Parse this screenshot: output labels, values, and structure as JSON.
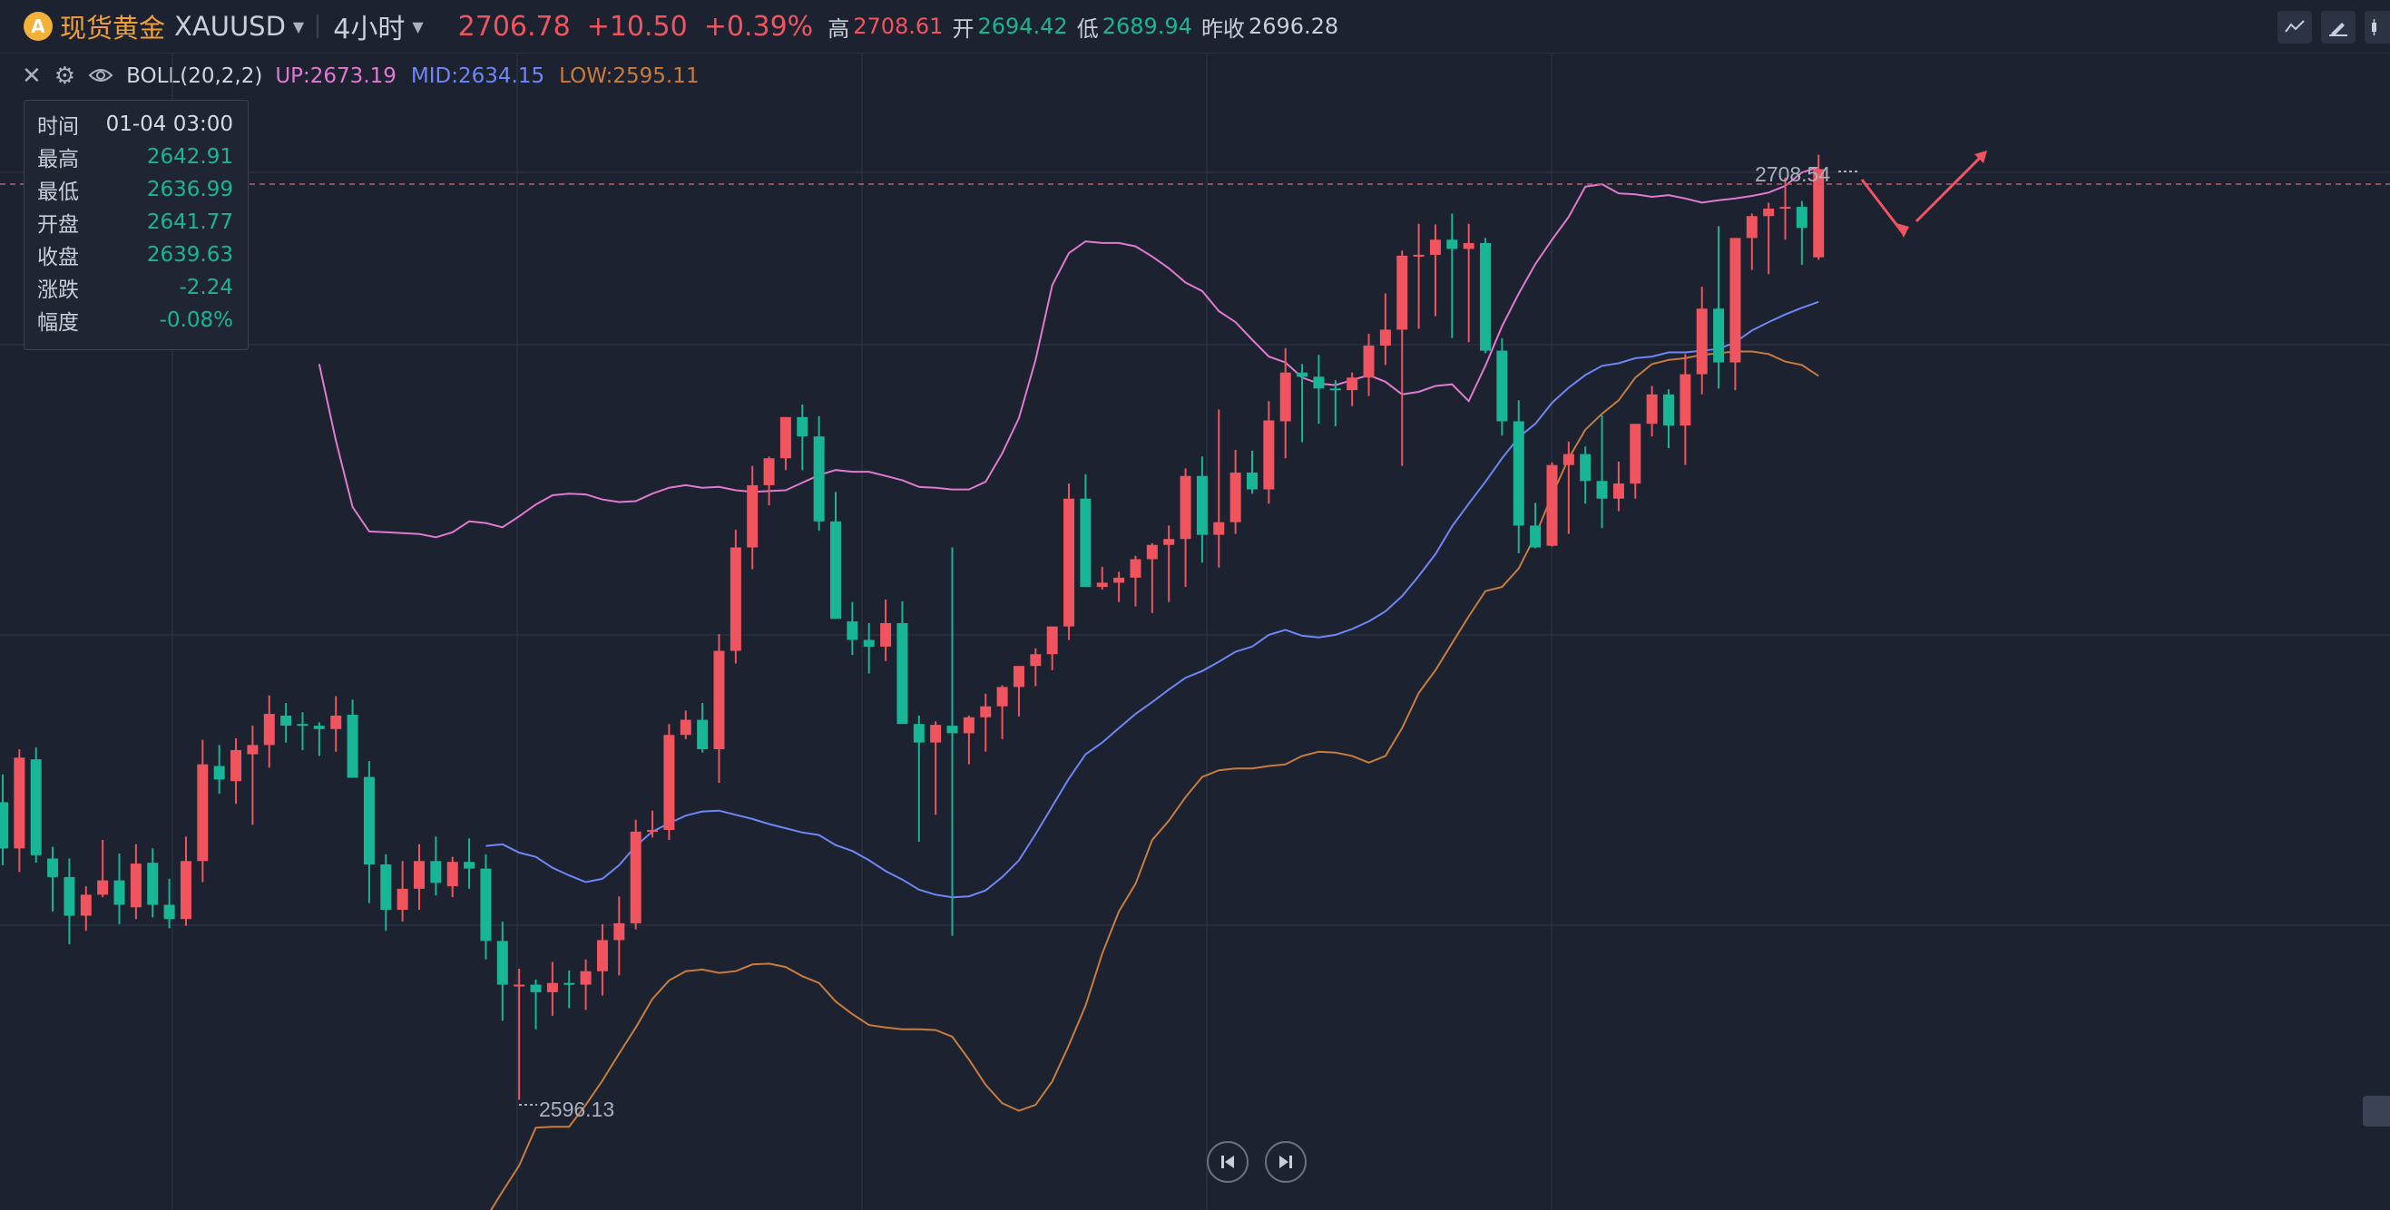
{
  "header": {
    "coin_glyph": "A",
    "name": "现货黄金",
    "code": "XAUUSD",
    "period": "4小时",
    "price": "2706.78",
    "change": "+10.50",
    "change_pct": "+0.39%",
    "high_label": "高",
    "high": "2708.61",
    "open_label": "开",
    "open": "2694.42",
    "low_label": "低",
    "low": "2689.94",
    "prev_label": "昨收",
    "prev": "2696.28",
    "tool_icons": [
      "indicator-icon",
      "draw-icon",
      "candle-type-icon"
    ]
  },
  "indicator": {
    "name": "BOLL(20,2,2)",
    "up": "UP:2673.19",
    "mid": "MID:2634.15",
    "low": "LOW:2595.11",
    "icons": [
      "close-icon",
      "settings-icon",
      "eye-icon"
    ]
  },
  "tooltip": {
    "time_label": "时间",
    "time": "01-04 03:00",
    "high_label": "最高",
    "high": "2642.91",
    "low_label": "最低",
    "low": "2636.99",
    "open_label": "开盘",
    "open": "2641.77",
    "close_label": "收盘",
    "close": "2639.63",
    "chg_label": "涨跌",
    "chg": "-2.24",
    "pct_label": "幅度",
    "pct": "-0.08%"
  },
  "colors": {
    "up": "#f0555f",
    "down": "#18b596",
    "boll_up": "#e07ad0",
    "boll_mid": "#6f86f5",
    "boll_low": "#c97c3d",
    "grid": "#283041",
    "background": "#1c2230"
  },
  "chart_data": {
    "type": "candlestick",
    "symbol": "XAUUSD",
    "interval": "4h",
    "ylim": [
      2583,
      2720
    ],
    "annotations": {
      "max_label": "2708.54",
      "min_label": "2596.13",
      "last_price": "2706.78"
    },
    "ohlc": [
      [
        2631.5,
        2634.8,
        2624.0,
        2626.0
      ],
      [
        2626.0,
        2637.8,
        2623.2,
        2636.8
      ],
      [
        2636.6,
        2638.0,
        2624.3,
        2625.2
      ],
      [
        2624.8,
        2626.2,
        2618.5,
        2622.6
      ],
      [
        2622.6,
        2624.8,
        2614.6,
        2618.0
      ],
      [
        2618.0,
        2621.5,
        2616.2,
        2620.5
      ],
      [
        2620.5,
        2627.0,
        2620.2,
        2622.2
      ],
      [
        2622.2,
        2625.4,
        2617.0,
        2619.3
      ],
      [
        2619.0,
        2626.5,
        2617.6,
        2624.2
      ],
      [
        2624.3,
        2626.0,
        2617.8,
        2619.3
      ],
      [
        2619.3,
        2622.4,
        2616.5,
        2617.6
      ],
      [
        2617.6,
        2627.4,
        2616.8,
        2624.5
      ],
      [
        2624.5,
        2638.9,
        2622.0,
        2636.0
      ],
      [
        2635.8,
        2638.3,
        2632.5,
        2634.2
      ],
      [
        2634.0,
        2639.1,
        2631.3,
        2637.7
      ],
      [
        2637.2,
        2640.6,
        2628.8,
        2638.3
      ],
      [
        2638.3,
        2644.2,
        2635.6,
        2642.0
      ],
      [
        2641.8,
        2643.3,
        2638.6,
        2640.6
      ],
      [
        2640.8,
        2642.2,
        2637.7,
        2640.6
      ],
      [
        2640.6,
        2641.0,
        2637.0,
        2640.2
      ],
      [
        2640.2,
        2644.1,
        2637.5,
        2641.8
      ],
      [
        2641.9,
        2643.7,
        2634.5,
        2634.4
      ],
      [
        2634.5,
        2636.4,
        2619.5,
        2624.1
      ],
      [
        2624.1,
        2625.3,
        2616.2,
        2618.7
      ],
      [
        2618.7,
        2624.5,
        2617.3,
        2621.2
      ],
      [
        2621.2,
        2626.5,
        2618.7,
        2624.5
      ],
      [
        2624.5,
        2627.4,
        2620.4,
        2621.9
      ],
      [
        2621.5,
        2625.0,
        2620.2,
        2624.4
      ],
      [
        2624.4,
        2627.2,
        2621.2,
        2623.6
      ],
      [
        2623.6,
        2625.3,
        2612.8,
        2615.0
      ],
      [
        2615.0,
        2617.3,
        2605.5,
        2609.8
      ],
      [
        2609.8,
        2611.7,
        2596.1,
        2609.8
      ],
      [
        2609.8,
        2610.4,
        2604.5,
        2608.9
      ],
      [
        2608.9,
        2612.5,
        2606.1,
        2610.0
      ],
      [
        2610.0,
        2611.5,
        2607.0,
        2609.8
      ],
      [
        2609.8,
        2612.8,
        2606.8,
        2611.4
      ],
      [
        2611.4,
        2617.0,
        2608.5,
        2615.1
      ],
      [
        2615.1,
        2620.3,
        2610.9,
        2617.1
      ],
      [
        2617.1,
        2629.4,
        2616.4,
        2628.0
      ],
      [
        2628.0,
        2630.5,
        2627.3,
        2628.2
      ],
      [
        2628.2,
        2640.8,
        2627.0,
        2639.5
      ],
      [
        2639.5,
        2642.4,
        2639.0,
        2641.3
      ],
      [
        2641.3,
        2643.3,
        2637.4,
        2637.8
      ],
      [
        2637.8,
        2651.5,
        2633.8,
        2649.5
      ],
      [
        2649.5,
        2663.9,
        2648.0,
        2661.8
      ],
      [
        2661.8,
        2671.5,
        2659.2,
        2669.2
      ],
      [
        2669.2,
        2672.6,
        2666.8,
        2672.4
      ],
      [
        2672.4,
        2677.3,
        2671.0,
        2677.3
      ],
      [
        2677.3,
        2678.8,
        2671.0,
        2675.0
      ],
      [
        2675.0,
        2677.4,
        2663.8,
        2664.9
      ],
      [
        2664.9,
        2668.4,
        2654.6,
        2653.3
      ],
      [
        2653.0,
        2655.3,
        2649.0,
        2650.8
      ],
      [
        2650.8,
        2652.8,
        2646.8,
        2650.0
      ],
      [
        2650.0,
        2655.6,
        2648.3,
        2652.8
      ],
      [
        2652.8,
        2655.4,
        2641.0,
        2640.8
      ],
      [
        2640.8,
        2641.8,
        2626.8,
        2638.6
      ],
      [
        2638.6,
        2641.1,
        2630.0,
        2640.7
      ],
      [
        2640.6,
        2661.8,
        2615.6,
        2639.7
      ],
      [
        2639.7,
        2641.8,
        2636.0,
        2641.6
      ],
      [
        2641.6,
        2644.4,
        2637.5,
        2642.9
      ],
      [
        2642.9,
        2645.4,
        2639.0,
        2645.2
      ],
      [
        2645.2,
        2647.1,
        2641.7,
        2647.7
      ],
      [
        2647.7,
        2649.8,
        2645.3,
        2649.1
      ],
      [
        2649.1,
        2652.4,
        2647.2,
        2652.4
      ],
      [
        2652.4,
        2669.4,
        2650.8,
        2667.6
      ],
      [
        2667.6,
        2670.5,
        2658.3,
        2657.1
      ],
      [
        2657.1,
        2659.5,
        2656.8,
        2657.6
      ],
      [
        2657.6,
        2658.9,
        2655.3,
        2658.2
      ],
      [
        2658.2,
        2660.8,
        2654.8,
        2660.4
      ],
      [
        2660.4,
        2662.3,
        2654.0,
        2662.1
      ],
      [
        2662.1,
        2664.4,
        2655.3,
        2662.8
      ],
      [
        2662.8,
        2671.2,
        2657.1,
        2670.3
      ],
      [
        2670.3,
        2672.6,
        2660.0,
        2663.3
      ],
      [
        2663.3,
        2678.2,
        2659.4,
        2664.8
      ],
      [
        2664.8,
        2673.4,
        2663.4,
        2670.7
      ],
      [
        2670.7,
        2673.3,
        2668.2,
        2668.7
      ],
      [
        2668.7,
        2679.2,
        2667.0,
        2676.9
      ],
      [
        2676.8,
        2685.5,
        2672.4,
        2682.6
      ],
      [
        2682.6,
        2683.6,
        2674.3,
        2682.1
      ],
      [
        2682.1,
        2684.7,
        2676.5,
        2680.7
      ],
      [
        2680.7,
        2681.7,
        2676.2,
        2680.5
      ],
      [
        2680.5,
        2682.6,
        2678.6,
        2682.0
      ],
      [
        2682.0,
        2687.2,
        2679.8,
        2685.8
      ],
      [
        2685.8,
        2692.0,
        2683.5,
        2687.7
      ],
      [
        2687.7,
        2697.1,
        2671.5,
        2696.5
      ],
      [
        2696.5,
        2700.3,
        2687.8,
        2696.6
      ],
      [
        2696.6,
        2700.2,
        2689.3,
        2698.4
      ],
      [
        2698.4,
        2701.5,
        2686.7,
        2697.3
      ],
      [
        2697.3,
        2700.3,
        2686.2,
        2698.0
      ],
      [
        2698.0,
        2698.6,
        2684.9,
        2685.2
      ],
      [
        2685.2,
        2686.7,
        2675.1,
        2676.8
      ],
      [
        2676.8,
        2679.3,
        2661.1,
        2664.4
      ],
      [
        2664.4,
        2667.1,
        2661.7,
        2661.8
      ],
      [
        2662.0,
        2671.9,
        2661.9,
        2671.6
      ],
      [
        2671.6,
        2674.4,
        2663.4,
        2672.9
      ],
      [
        2672.9,
        2673.8,
        2667.0,
        2669.7
      ],
      [
        2669.7,
        2677.5,
        2664.1,
        2667.6
      ],
      [
        2667.6,
        2672.0,
        2666.1,
        2669.4
      ],
      [
        2669.4,
        2676.2,
        2667.6,
        2676.5
      ],
      [
        2676.5,
        2681.0,
        2675.0,
        2680.0
      ],
      [
        2680.0,
        2680.6,
        2673.6,
        2676.3
      ],
      [
        2676.3,
        2684.8,
        2671.6,
        2682.4
      ],
      [
        2682.4,
        2692.8,
        2680.0,
        2690.2
      ],
      [
        2690.2,
        2700.0,
        2680.7,
        2683.8
      ],
      [
        2683.8,
        2698.6,
        2680.5,
        2698.6
      ],
      [
        2698.6,
        2701.5,
        2694.8,
        2701.2
      ],
      [
        2701.2,
        2702.8,
        2694.3,
        2702.1
      ],
      [
        2702.1,
        2705.8,
        2698.4,
        2702.3
      ],
      [
        2702.3,
        2703.0,
        2695.4,
        2699.8
      ],
      [
        2696.3,
        2708.5,
        2696.0,
        2706.8
      ]
    ],
    "boll_up": [
      2683.6,
      2674.5,
      2666.6,
      2663.7,
      2663.6,
      2663.5,
      2663.4,
      2663.0,
      2663.6,
      2664.9,
      2664.7,
      2664.2,
      2665.5,
      2666.9,
      2668.0,
      2668.2,
      2668.1,
      2667.5,
      2667.2,
      2667.3,
      2668.2,
      2668.9,
      2669.2,
      2668.9,
      2669.0,
      2668.6,
      2668.4,
      2668.5,
      2668.6,
      2669.5,
      2670.4,
      2671.0,
      2670.8,
      2670.8,
      2670.3,
      2669.8,
      2669.0,
      2668.9,
      2668.7,
      2668.7,
      2669.6,
      2673.0,
      2677.2,
      2684.1,
      2693.0,
      2696.8,
      2698.2,
      2698.0,
      2698.0,
      2697.6,
      2696.4,
      2695.0,
      2693.3,
      2692.3,
      2689.9,
      2688.6,
      2686.5,
      2684.5,
      2683.8,
      2682.0,
      2681.3,
      2681.1,
      2681.7,
      2682.3,
      2681.5,
      2680.0,
      2680.3,
      2681.0,
      2681.2,
      2679.2,
      2683.4,
      2688.1,
      2692.0,
      2695.5,
      2698.4,
      2701.1,
      2704.7,
      2705.0,
      2703.9,
      2703.8,
      2703.5,
      2703.7,
      2703.3,
      2702.8,
      2703.1,
      2703.3,
      2703.6,
      2704.0,
      2704.8,
      2706.4,
      2707.0
    ],
    "boll_mid": [
      2626.3,
      2626.5,
      2625.5,
      2625.0,
      2623.7,
      2622.8,
      2622.0,
      2622.4,
      2624.0,
      2626.3,
      2628.0,
      2629.0,
      2629.9,
      2630.4,
      2630.5,
      2630.0,
      2629.5,
      2628.9,
      2628.4,
      2627.9,
      2627.6,
      2626.4,
      2625.7,
      2624.6,
      2623.3,
      2622.3,
      2621.1,
      2620.5,
      2620.2,
      2620.3,
      2621.0,
      2622.6,
      2624.6,
      2627.7,
      2631.0,
      2634.3,
      2637.2,
      2638.6,
      2640.3,
      2642.0,
      2643.4,
      2644.9,
      2646.3,
      2647.1,
      2648.2,
      2649.4,
      2650.0,
      2651.4,
      2652.0,
      2651.3,
      2651.1,
      2651.4,
      2652.1,
      2653.0,
      2654.2,
      2656.0,
      2658.4,
      2661.0,
      2664.3,
      2667.0,
      2669.6,
      2672.4,
      2674.9,
      2676.5,
      2679.0,
      2680.8,
      2682.3,
      2683.4,
      2683.7,
      2684.3,
      2684.5,
      2685.0,
      2685.0,
      2685.2,
      2685.4,
      2686.2,
      2687.6,
      2688.6,
      2689.5,
      2690.3,
      2691.0
    ],
    "boll_low": [
      2582.0,
      2585.2,
      2588.3,
      2592.8,
      2592.9,
      2592.9,
      2595.5,
      2598.4,
      2601.6,
      2604.7,
      2608.1,
      2610.3,
      2611.4,
      2611.6,
      2611.2,
      2611.4,
      2612.2,
      2612.3,
      2611.9,
      2610.8,
      2610.0,
      2607.8,
      2606.3,
      2605.0,
      2604.7,
      2604.5,
      2604.5,
      2604.4,
      2603.6,
      2600.9,
      2597.9,
      2595.7,
      2594.8,
      2595.5,
      2598.3,
      2602.6,
      2607.3,
      2613.5,
      2618.5,
      2621.8,
      2627.0,
      2629.3,
      2632.1,
      2634.5,
      2635.3,
      2635.5,
      2635.5,
      2635.8,
      2636.0,
      2637.0,
      2637.5,
      2637.4,
      2637.0,
      2636.2,
      2637.0,
      2640.3,
      2644.5,
      2647.2,
      2650.4,
      2653.6,
      2656.6,
      2657.1,
      2659.3,
      2663.2,
      2668.0,
      2672.4,
      2675.8,
      2677.7,
      2679.3,
      2682.0,
      2683.6,
      2684.1,
      2684.3,
      2684.7,
      2684.9,
      2685.1,
      2685.1,
      2684.8,
      2683.9,
      2683.5,
      2682.2
    ]
  }
}
